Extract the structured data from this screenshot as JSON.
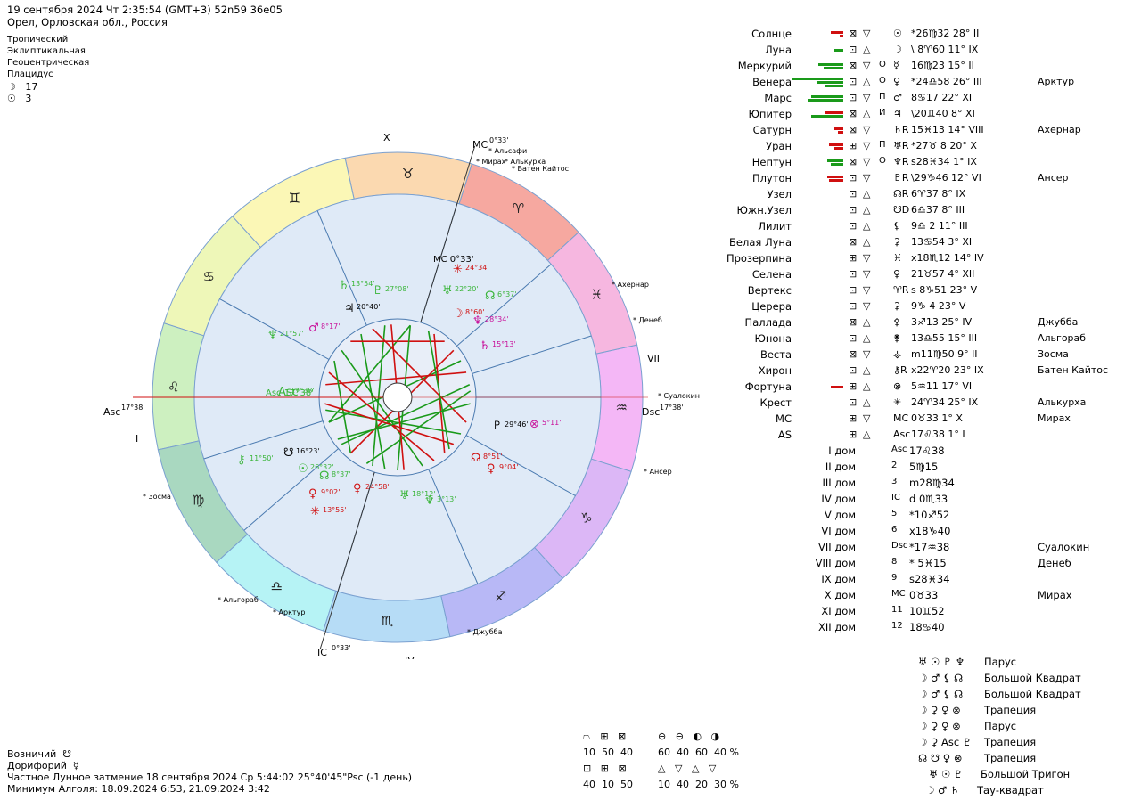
{
  "header": {
    "line1": "19 сентября 2024  Чт   2:35:54 (GMT+3) 52n59  36e05",
    "line2": "Орел, Орловская обл., Россия"
  },
  "settings": [
    "Тропический",
    "Эклиптикальная",
    "Геоцентрическая",
    "Плацидус"
  ],
  "counts": [
    {
      "glyph": "☽",
      "value": "17"
    },
    {
      "glyph": "☉",
      "value": "3"
    }
  ],
  "wheel": {
    "roman_x": "X",
    "roman_vii": "VII",
    "roman_i": "I",
    "roman_iv": "IV",
    "asc_label": "Asc",
    "asc_deg": "17°38'",
    "dsc_label": "Dsc",
    "dsc_deg": "17°38'",
    "mc_label": "MC",
    "mc_deg": "0°33'",
    "ic_label": "IC",
    "ic_deg": "0°33'",
    "mc_inner": "MC 0°33'",
    "asc_inner": "Asc 17°38'",
    "fixed_stars": [
      "Альсафи",
      "Мирах",
      "Алькурха",
      "Батен Кайтос",
      "Ахернар",
      "Денеб",
      "Суалокин",
      "Ансер",
      "Джубба",
      "Арктур",
      "Альгораб",
      "Зосма"
    ],
    "signs": [
      "♈",
      "♉",
      "♊",
      "♋",
      "♌",
      "♍",
      "♎",
      "♏",
      "♐",
      "♑",
      "♒",
      "♓"
    ],
    "sign_colors": [
      "#f6a8a0",
      "#fbd9b0",
      "#fbf7b6",
      "#eef7b8",
      "#cdf0c0",
      "#a9d8c0",
      "#b6f3f5",
      "#b6dcf6",
      "#b8b8f6",
      "#dcb7f6",
      "#f4b7f6",
      "#f6b7e0"
    ],
    "planet_labels": [
      {
        "glyph": "♄",
        "text": "13°54'",
        "color": "#3ab53a"
      },
      {
        "glyph": "♇",
        "text": "27°08'",
        "color": "#3ab53a"
      },
      {
        "glyph": "♃",
        "text": "20°40'",
        "color": "#000000"
      },
      {
        "glyph": "♂",
        "text": "8°17'",
        "color": "#c8109a"
      },
      {
        "glyph": "♆",
        "text": "21°57'",
        "color": "#3ab53a"
      },
      {
        "glyph": "Asc",
        "text": "17°38'",
        "color": "#3ab53a"
      },
      {
        "glyph": "☋",
        "text": "16°23'",
        "color": "#000000"
      },
      {
        "glyph": "☉",
        "text": "26°32'",
        "color": "#3ab53a"
      },
      {
        "glyph": "☊",
        "text": "8°37'",
        "color": "#3ab53a"
      },
      {
        "glyph": "⚷",
        "text": "11°50'",
        "color": "#3ab53a"
      },
      {
        "glyph": "♀",
        "text": "9°02'",
        "color": "#d01010"
      },
      {
        "glyph": "✳",
        "text": "13°55'",
        "color": "#d01010"
      },
      {
        "glyph": "♀",
        "text": "24°58'",
        "color": "#d01010"
      },
      {
        "glyph": "♅",
        "text": "18°12'",
        "color": "#3ab53a"
      },
      {
        "glyph": "♆",
        "text": "3°13'",
        "color": "#3ab53a"
      },
      {
        "glyph": "☊",
        "text": "8°51'",
        "color": "#d01010"
      },
      {
        "glyph": "♀",
        "text": "9°04'",
        "color": "#d01010"
      },
      {
        "glyph": "♇",
        "text": "29°46'",
        "color": "#000000"
      },
      {
        "glyph": "⊗",
        "text": "5°11'",
        "color": "#c8109a"
      },
      {
        "glyph": "♄",
        "text": "15°13'",
        "color": "#c8109a"
      },
      {
        "glyph": "♆",
        "text": "28°34'",
        "color": "#c8109a"
      },
      {
        "glyph": "☽",
        "text": "8°60'",
        "color": "#d01010"
      },
      {
        "glyph": "☊",
        "text": "6°37'",
        "color": "#3ab53a"
      },
      {
        "glyph": "♅",
        "text": "22°20'",
        "color": "#3ab53a"
      },
      {
        "glyph": "✳",
        "text": "24°34'",
        "color": "#d01010"
      }
    ]
  },
  "planets": [
    {
      "name": "Солнце",
      "bars": [
        {
          "w": 14,
          "c": "#d01010"
        },
        {
          "w": 4,
          "c": "#d01010"
        }
      ],
      "box1": "⊠",
      "aspect": "▽",
      "extra": "",
      "sym": "☉",
      "pos": "*26♍32 28° II",
      "star": ""
    },
    {
      "name": "Луна",
      "bars": [
        {
          "w": 10,
          "c": "#1a9a1a"
        }
      ],
      "box1": "⊡",
      "aspect": "△",
      "extra": "",
      "sym": "☽",
      "pos": "\\ 8♈60 11° IX",
      "star": ""
    },
    {
      "name": "Меркурий",
      "bars": [
        {
          "w": 28,
          "c": "#1a9a1a"
        },
        {
          "w": 22,
          "c": "#1a9a1a"
        }
      ],
      "box1": "⊠",
      "aspect": "▽",
      "extra": "О",
      "sym": "☿",
      "pos": "16♍23 15° II",
      "star": ""
    },
    {
      "name": "Венера",
      "bars": [
        {
          "w": 58,
          "c": "#1a9a1a"
        },
        {
          "w": 30,
          "c": "#1a9a1a"
        },
        {
          "w": 20,
          "c": "#1a9a1a"
        }
      ],
      "box1": "⊡",
      "aspect": "△",
      "extra": "О",
      "sym": "♀",
      "pos": "*24♎58 26° III",
      "star": "Арктур"
    },
    {
      "name": "Марс",
      "bars": [
        {
          "w": 36,
          "c": "#1a9a1a"
        },
        {
          "w": 40,
          "c": "#1a9a1a"
        }
      ],
      "box1": "⊡",
      "aspect": "▽",
      "extra": "П",
      "sym": "♂",
      "pos": "8♋17 22° XI",
      "star": ""
    },
    {
      "name": "Юпитер",
      "bars": [
        {
          "w": 20,
          "c": "#d01010"
        },
        {
          "w": 36,
          "c": "#1a9a1a"
        }
      ],
      "box1": "⊠",
      "aspect": "△",
      "extra": "И",
      "sym": "♃",
      "pos": "\\20♊40 8° XI",
      "star": ""
    },
    {
      "name": "Сатурн",
      "bars": [
        {
          "w": 10,
          "c": "#d01010"
        },
        {
          "w": 6,
          "c": "#d01010"
        }
      ],
      "box1": "⊠",
      "aspect": "▽",
      "extra": "",
      "sym": "♄R",
      "pos": "15♓13 14° VIII",
      "star": "Ахернар"
    },
    {
      "name": "Уран",
      "bars": [
        {
          "w": 16,
          "c": "#d01010"
        },
        {
          "w": 10,
          "c": "#d01010"
        }
      ],
      "box1": "⊞",
      "aspect": "▽",
      "extra": "П",
      "sym": "♅R",
      "pos": "*27♉ 8 20° X",
      "star": ""
    },
    {
      "name": "Нептун",
      "bars": [
        {
          "w": 18,
          "c": "#1a9a1a"
        },
        {
          "w": 14,
          "c": "#1a9a1a"
        }
      ],
      "box1": "⊠",
      "aspect": "▽",
      "extra": "О",
      "sym": "♆R",
      "pos": "s28♓34 1° IX",
      "star": ""
    },
    {
      "name": "Плутон",
      "bars": [
        {
          "w": 18,
          "c": "#d01010"
        },
        {
          "w": 16,
          "c": "#d01010"
        }
      ],
      "box1": "⊡",
      "aspect": "▽",
      "extra": "",
      "sym": "♇R",
      "pos": "\\29♑46 12° VI",
      "star": "Ансер"
    },
    {
      "name": "Узел",
      "bars": [],
      "box1": "⊡",
      "aspect": "△",
      "extra": "",
      "sym": "☊R",
      "pos": "6♈37 8° IX",
      "star": ""
    },
    {
      "name": "Южн.Узел",
      "bars": [],
      "box1": "⊡",
      "aspect": "△",
      "extra": "",
      "sym": "☋D",
      "pos": "6♎37 8° III",
      "star": ""
    },
    {
      "name": "Лилит",
      "bars": [],
      "box1": "⊡",
      "aspect": "△",
      "extra": "",
      "sym": "⚸",
      "pos": "9♎ 2 11° III",
      "star": ""
    },
    {
      "name": "Белая Луна",
      "bars": [],
      "box1": "⊠",
      "aspect": "△",
      "extra": "",
      "sym": "⚳",
      "pos": "13♋54 3° XI",
      "star": ""
    },
    {
      "name": "Прозерпина",
      "bars": [],
      "box1": "⊞",
      "aspect": "▽",
      "extra": "",
      "sym": "♓",
      "pos": "x18♏12 14° IV",
      "star": ""
    },
    {
      "name": "Селена",
      "bars": [],
      "box1": "⊡",
      "aspect": "▽",
      "extra": "",
      "sym": "♀",
      "pos": "21♉57 4° XII",
      "star": ""
    },
    {
      "name": "Вертекс",
      "bars": [],
      "box1": "⊡",
      "aspect": "▽",
      "extra": "",
      "sym": "♈R",
      "pos": "s 8♑51 23° V",
      "star": ""
    },
    {
      "name": "Церера",
      "bars": [],
      "box1": "⊡",
      "aspect": "▽",
      "extra": "",
      "sym": "⚳",
      "pos": "9♑ 4 23° V",
      "star": ""
    },
    {
      "name": "Паллада",
      "bars": [],
      "box1": "⊠",
      "aspect": "△",
      "extra": "",
      "sym": "⚴",
      "pos": "3♐13 25° IV",
      "star": "Джубба"
    },
    {
      "name": "Юнона",
      "bars": [],
      "box1": "⊡",
      "aspect": "△",
      "extra": "",
      "sym": "⚵",
      "pos": "13♎55 15° III",
      "star": "Альгораб"
    },
    {
      "name": "Веста",
      "bars": [],
      "box1": "⊠",
      "aspect": "▽",
      "extra": "",
      "sym": "⚶",
      "pos": "m11♍50 9° II",
      "star": "Зосма"
    },
    {
      "name": "Хирон",
      "bars": [],
      "box1": "⊡",
      "aspect": "△",
      "extra": "",
      "sym": "⚷R",
      "pos": "x22♈20 23° IX",
      "star": "Батен Кайтос"
    },
    {
      "name": "Фортуна",
      "bars": [
        {
          "w": 14,
          "c": "#d01010"
        }
      ],
      "box1": "⊞",
      "aspect": "△",
      "extra": "",
      "sym": "⊗",
      "pos": "5♒11 17° VI",
      "star": ""
    },
    {
      "name": "Крест",
      "bars": [],
      "box1": "⊡",
      "aspect": "△",
      "extra": "",
      "sym": "✳",
      "pos": "24♈34 25° IX",
      "star": "Алькурха"
    },
    {
      "name": "MC",
      "bars": [],
      "box1": "⊞",
      "aspect": "▽",
      "extra": "",
      "sym": "MC",
      "pos": "0♉33 1° X",
      "star": "Мирах"
    },
    {
      "name": "AS",
      "bars": [],
      "box1": "⊞",
      "aspect": "△",
      "extra": "",
      "sym": "Asc",
      "pos": "17♌38 1° I",
      "star": ""
    }
  ],
  "houses": [
    {
      "name": "I дом",
      "sym": "Asc",
      "pos": "17♌38",
      "star": ""
    },
    {
      "name": "II дом",
      "sym": "2",
      "pos": "5♍15",
      "star": ""
    },
    {
      "name": "III дом",
      "sym": "3",
      "pos": "m28♍34",
      "star": ""
    },
    {
      "name": "IV дом",
      "sym": "IC",
      "pos": "d 0♏33",
      "star": ""
    },
    {
      "name": "V дом",
      "sym": "5",
      "pos": "*10♐52",
      "star": ""
    },
    {
      "name": "VI дом",
      "sym": "6",
      "pos": "x18♑40",
      "star": ""
    },
    {
      "name": "VII дом",
      "sym": "Dsc",
      "pos": "*17♒38",
      "star": "Суалокин"
    },
    {
      "name": "VIII дом",
      "sym": "8",
      "pos": "* 5♓15",
      "star": "Денеб"
    },
    {
      "name": "IX дом",
      "sym": "9",
      "pos": "s28♓34",
      "star": ""
    },
    {
      "name": "X дом",
      "sym": "MC",
      "pos": "0♉33",
      "star": "Мирах"
    },
    {
      "name": "XI дом",
      "sym": "11",
      "pos": "10♊52",
      "star": ""
    },
    {
      "name": "XII дом",
      "sym": "12",
      "pos": "18♋40",
      "star": ""
    }
  ],
  "configs": [
    {
      "glyphs": "♅ ☉ ♇ ♆",
      "name": "Парус"
    },
    {
      "glyphs": "☽ ♂ ⚸ ☊",
      "name": "Большой Квадрат"
    },
    {
      "glyphs": "☽ ♂ ⚸ ☊",
      "name": "Большой Квадрат"
    },
    {
      "glyphs": "☽ ⚳ ♀ ⊗",
      "name": "Трапеция"
    },
    {
      "glyphs": "☽ ⚳ ♀ ⊗",
      "name": "Парус"
    },
    {
      "glyphs": "☽ ⚳ Asc ♇",
      "name": "Трапеция"
    },
    {
      "glyphs": "☊ ☋ ♀ ⊗",
      "name": "Трапеция"
    },
    {
      "glyphs": "♅ ☉ ♇",
      "name": "Большой Тригон"
    },
    {
      "glyphs": "☽ ♂ ♄",
      "name": "Тау-квадрат"
    }
  ],
  "legend": {
    "row1_icons": [
      "⏢",
      "⊞",
      "⊠"
    ],
    "row1_vals": [
      "10",
      "50",
      "40"
    ],
    "row1b_icons": [
      "⊖",
      "⊖",
      "◐",
      "◑"
    ],
    "row1b_vals": [
      "60",
      "40",
      "60",
      "40 %"
    ],
    "row2_icons": [
      "⊡",
      "⊞",
      "⊠"
    ],
    "row2_vals": [
      "40",
      "10",
      "50"
    ],
    "row2b_icons": [
      "△",
      "▽",
      "△",
      "▽"
    ],
    "row2b_vals": [
      "10",
      "40",
      "20",
      "30 %"
    ]
  },
  "bottom": {
    "line1_label": "Возничий",
    "line1_glyph": "☋",
    "line2_label": "Дорифорий",
    "line2_glyph": "☿",
    "line3": "Частное Лунное затмение 18 сентября 2024 Ср  5:44:02 25°40'45\"Psc (-1 день)",
    "line4": "Минимум Алголя: 18.09.2024  6:53,  21.09.2024  3:42"
  }
}
